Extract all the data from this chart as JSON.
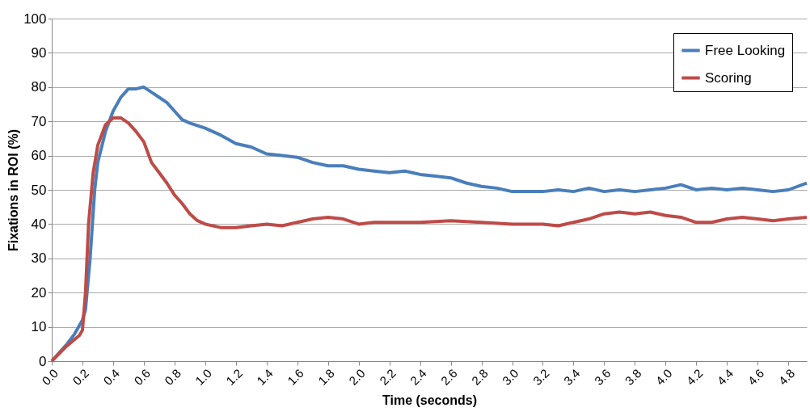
{
  "chart_data": {
    "type": "line",
    "xlabel": "Time (seconds)",
    "ylabel": "Fixations in ROI (%)",
    "xlim": [
      0,
      4.92
    ],
    "ylim": [
      0,
      100
    ],
    "xticks": [
      {
        "value": 0,
        "label": "0.0"
      },
      {
        "value": 0.2,
        "label": "0.2"
      },
      {
        "value": 0.4,
        "label": "0.4"
      },
      {
        "value": 0.6,
        "label": "0.6"
      },
      {
        "value": 0.8,
        "label": "0.8"
      },
      {
        "value": 1,
        "label": "1.0"
      },
      {
        "value": 1.2,
        "label": "1.2"
      },
      {
        "value": 1.4,
        "label": "1.4"
      },
      {
        "value": 1.6,
        "label": "1.6"
      },
      {
        "value": 1.8,
        "label": "1.8"
      },
      {
        "value": 2,
        "label": "2.0"
      },
      {
        "value": 2.2,
        "label": "2.2"
      },
      {
        "value": 2.4,
        "label": "2.4"
      },
      {
        "value": 2.6,
        "label": "2.6"
      },
      {
        "value": 2.8,
        "label": "2.8"
      },
      {
        "value": 3,
        "label": "3.0"
      },
      {
        "value": 3.2,
        "label": "3.2"
      },
      {
        "value": 3.4,
        "label": "3.4"
      },
      {
        "value": 3.6,
        "label": "3.6"
      },
      {
        "value": 3.8,
        "label": "3.8"
      },
      {
        "value": 4,
        "label": "4.0"
      },
      {
        "value": 4.2,
        "label": "4.2"
      },
      {
        "value": 4.4,
        "label": "4.4"
      },
      {
        "value": 4.6,
        "label": "4.6"
      },
      {
        "value": 4.8,
        "label": "4.8"
      }
    ],
    "yticks": [
      0,
      10,
      20,
      30,
      40,
      50,
      60,
      70,
      80,
      90,
      100
    ],
    "grid": "y",
    "legend": "top right",
    "marker": "none",
    "line_style": "solid",
    "series": [
      {
        "name": "Free Looking",
        "color": "#4a7ebb",
        "x": [
          0,
          0.05,
          0.1,
          0.15,
          0.2,
          0.22,
          0.25,
          0.28,
          0.3,
          0.35,
          0.4,
          0.45,
          0.5,
          0.55,
          0.6,
          0.65,
          0.7,
          0.75,
          0.8,
          0.85,
          0.9,
          1.0,
          1.1,
          1.2,
          1.3,
          1.4,
          1.5,
          1.6,
          1.7,
          1.8,
          1.9,
          2.0,
          2.1,
          2.2,
          2.3,
          2.4,
          2.5,
          2.6,
          2.7,
          2.8,
          2.9,
          3.0,
          3.1,
          3.2,
          3.3,
          3.4,
          3.5,
          3.6,
          3.7,
          3.8,
          3.9,
          4.0,
          4.1,
          4.2,
          4.3,
          4.4,
          4.5,
          4.6,
          4.7,
          4.8,
          4.92
        ],
        "values": [
          0,
          2.5,
          5,
          8,
          12,
          15,
          30,
          50,
          58,
          67,
          73,
          77,
          79.5,
          79.5,
          80,
          78.5,
          77,
          75.5,
          73,
          70.5,
          69.5,
          68,
          66,
          63.5,
          62.5,
          60.5,
          60,
          59.5,
          58,
          57,
          57,
          56,
          55.5,
          55,
          55.5,
          54.5,
          54,
          53.5,
          52,
          51,
          50.5,
          49.5,
          49.5,
          49.5,
          50,
          49.5,
          50.5,
          49.5,
          50,
          49.5,
          50,
          50.5,
          51.5,
          50,
          50.5,
          50,
          50.5,
          50,
          49.5,
          50,
          52
        ]
      },
      {
        "name": "Scoring",
        "color": "#be4b48",
        "x": [
          0,
          0.1,
          0.18,
          0.2,
          0.22,
          0.24,
          0.27,
          0.3,
          0.35,
          0.4,
          0.45,
          0.5,
          0.55,
          0.6,
          0.65,
          0.7,
          0.75,
          0.8,
          0.85,
          0.9,
          0.95,
          1.0,
          1.1,
          1.2,
          1.3,
          1.4,
          1.5,
          1.6,
          1.7,
          1.8,
          1.9,
          2.0,
          2.1,
          2.2,
          2.4,
          2.6,
          2.8,
          3.0,
          3.2,
          3.3,
          3.4,
          3.5,
          3.6,
          3.7,
          3.8,
          3.9,
          4.0,
          4.1,
          4.2,
          4.3,
          4.4,
          4.5,
          4.6,
          4.7,
          4.8,
          4.92
        ],
        "values": [
          0,
          4.5,
          7.5,
          9,
          20,
          40,
          55,
          63,
          69,
          71,
          71,
          69.5,
          67,
          64,
          58,
          55,
          52,
          48.5,
          46,
          43,
          41,
          40,
          39,
          39,
          39.5,
          40,
          39.5,
          40.5,
          41.5,
          42,
          41.5,
          40,
          40.5,
          40.5,
          40.5,
          41,
          40.5,
          40,
          40,
          39.5,
          40.5,
          41.5,
          43,
          43.5,
          43,
          43.5,
          42.5,
          42,
          40.5,
          40.5,
          41.5,
          42,
          41.5,
          41,
          41.5,
          42
        ]
      }
    ]
  }
}
